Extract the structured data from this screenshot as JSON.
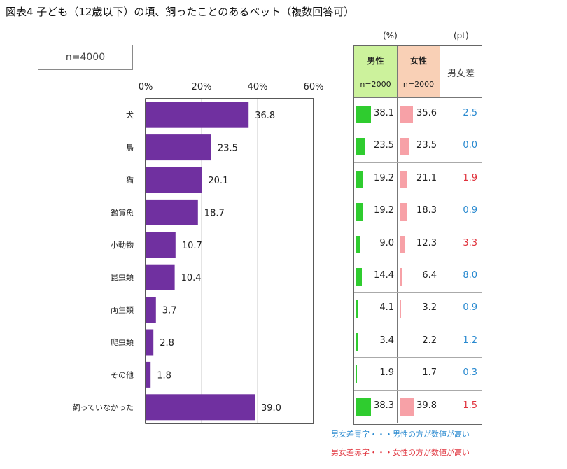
{
  "title": "図表4 子ども（12歳以下）の頃、飼ったことのあるペット（複数回答可）",
  "sample_label": "n=4000",
  "chart_data": {
    "type": "bar",
    "orientation": "horizontal",
    "categories": [
      "犬",
      "鳥",
      "猫",
      "鑑賞魚",
      "小動物",
      "昆虫類",
      "両生類",
      "爬虫類",
      "その他",
      "飼っていなかった"
    ],
    "values": [
      36.8,
      23.5,
      20.1,
      18.7,
      10.7,
      10.4,
      3.7,
      2.8,
      1.8,
      39.0
    ],
    "value_labels": [
      "36.8",
      "23.5",
      "20.1",
      "18.7",
      "10.7",
      "10.4",
      "3.7",
      "2.8",
      "1.8",
      "39.0"
    ],
    "xlim": [
      0,
      60
    ],
    "xticks": [
      "0%",
      "20%",
      "40%",
      "60%"
    ],
    "grid": true,
    "bar_color": "#7030a0"
  },
  "table": {
    "unit_pct": "(%)",
    "unit_pt": "(pt)",
    "male_header": "男性",
    "male_n": "n=2000",
    "female_header": "女性",
    "female_n": "n=2000",
    "diff_header": "男女差",
    "male_color": "#2fcc2f",
    "female_color": "#f7a1a7",
    "rows": [
      {
        "male": "38.1",
        "female": "35.6",
        "diff": "2.5",
        "diff_color": "blue"
      },
      {
        "male": "23.5",
        "female": "23.5",
        "diff": "0.0",
        "diff_color": "blue"
      },
      {
        "male": "19.2",
        "female": "21.1",
        "diff": "1.9",
        "diff_color": "red"
      },
      {
        "male": "19.2",
        "female": "18.3",
        "diff": "0.9",
        "diff_color": "blue"
      },
      {
        "male": "9.0",
        "female": "12.3",
        "diff": "3.3",
        "diff_color": "red"
      },
      {
        "male": "14.4",
        "female": "6.4",
        "diff": "8.0",
        "diff_color": "blue"
      },
      {
        "male": "4.1",
        "female": "3.2",
        "diff": "0.9",
        "diff_color": "blue"
      },
      {
        "male": "3.4",
        "female": "2.2",
        "diff": "1.2",
        "diff_color": "blue"
      },
      {
        "male": "1.9",
        "female": "1.7",
        "diff": "0.3",
        "diff_color": "blue"
      },
      {
        "male": "38.3",
        "female": "39.8",
        "diff": "1.5",
        "diff_color": "red"
      }
    ]
  },
  "notes": {
    "blue": "男女差青字・・・男性の方が数値が高い",
    "red": "男女差赤字・・・女性の方が数値が高い"
  }
}
